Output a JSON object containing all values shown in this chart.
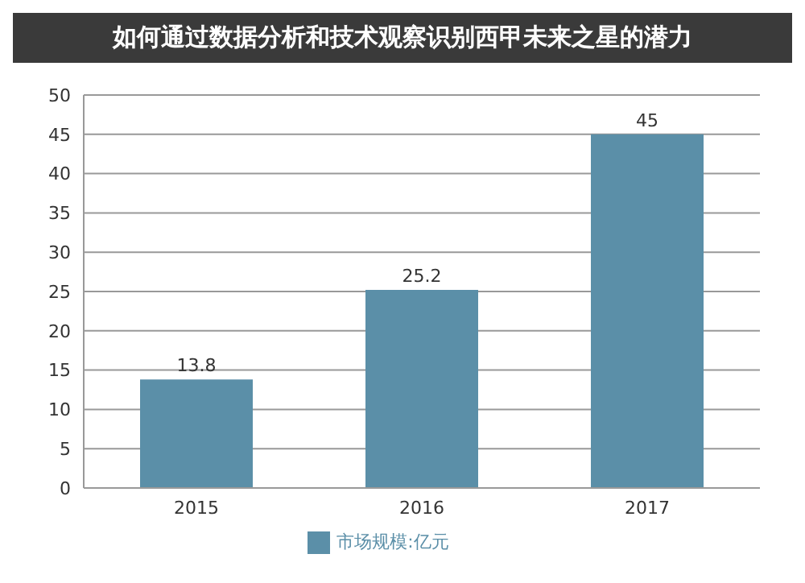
{
  "chart_data": {
    "type": "bar",
    "title": "如何通过数据分析和技术观察识别西甲未来之星的潜力",
    "categories": [
      "2015",
      "2016",
      "2017"
    ],
    "series": [
      {
        "name": "市场规模:亿元",
        "color": "#5b8fa8",
        "values": [
          13.8,
          25.2,
          45
        ]
      }
    ],
    "ylim": [
      0,
      50
    ],
    "yticks": [
      0,
      5,
      10,
      15,
      20,
      25,
      30,
      35,
      40,
      45,
      50
    ],
    "grid": "y",
    "legend": "bottom",
    "data_labels": true
  }
}
